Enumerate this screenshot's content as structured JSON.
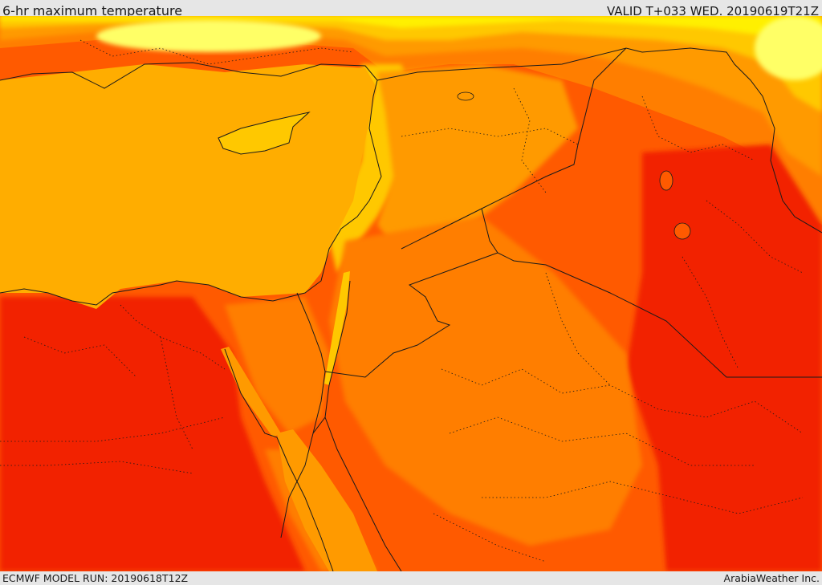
{
  "header": {
    "title": "6-hr maximum temperature",
    "valid_time": "VALID T+033 WED. 20190619T21Z"
  },
  "footer": {
    "model_run": "ECMWF MODEL RUN: 20190618T12Z",
    "credit": "ArabiaWeather Inc."
  },
  "palette": {
    "sea": "#ffad00",
    "pale_yellow": "#ffff66",
    "yellow": "#fff000",
    "gold": "#ffc800",
    "light_orange": "#ff9a00",
    "orange": "#ff7e00",
    "dark_orange": "#ff5a00",
    "red_orange": "#ff3a00",
    "red": "#f22000",
    "border_line": "#1a1a1a",
    "frame": "#e6e6e6"
  }
}
